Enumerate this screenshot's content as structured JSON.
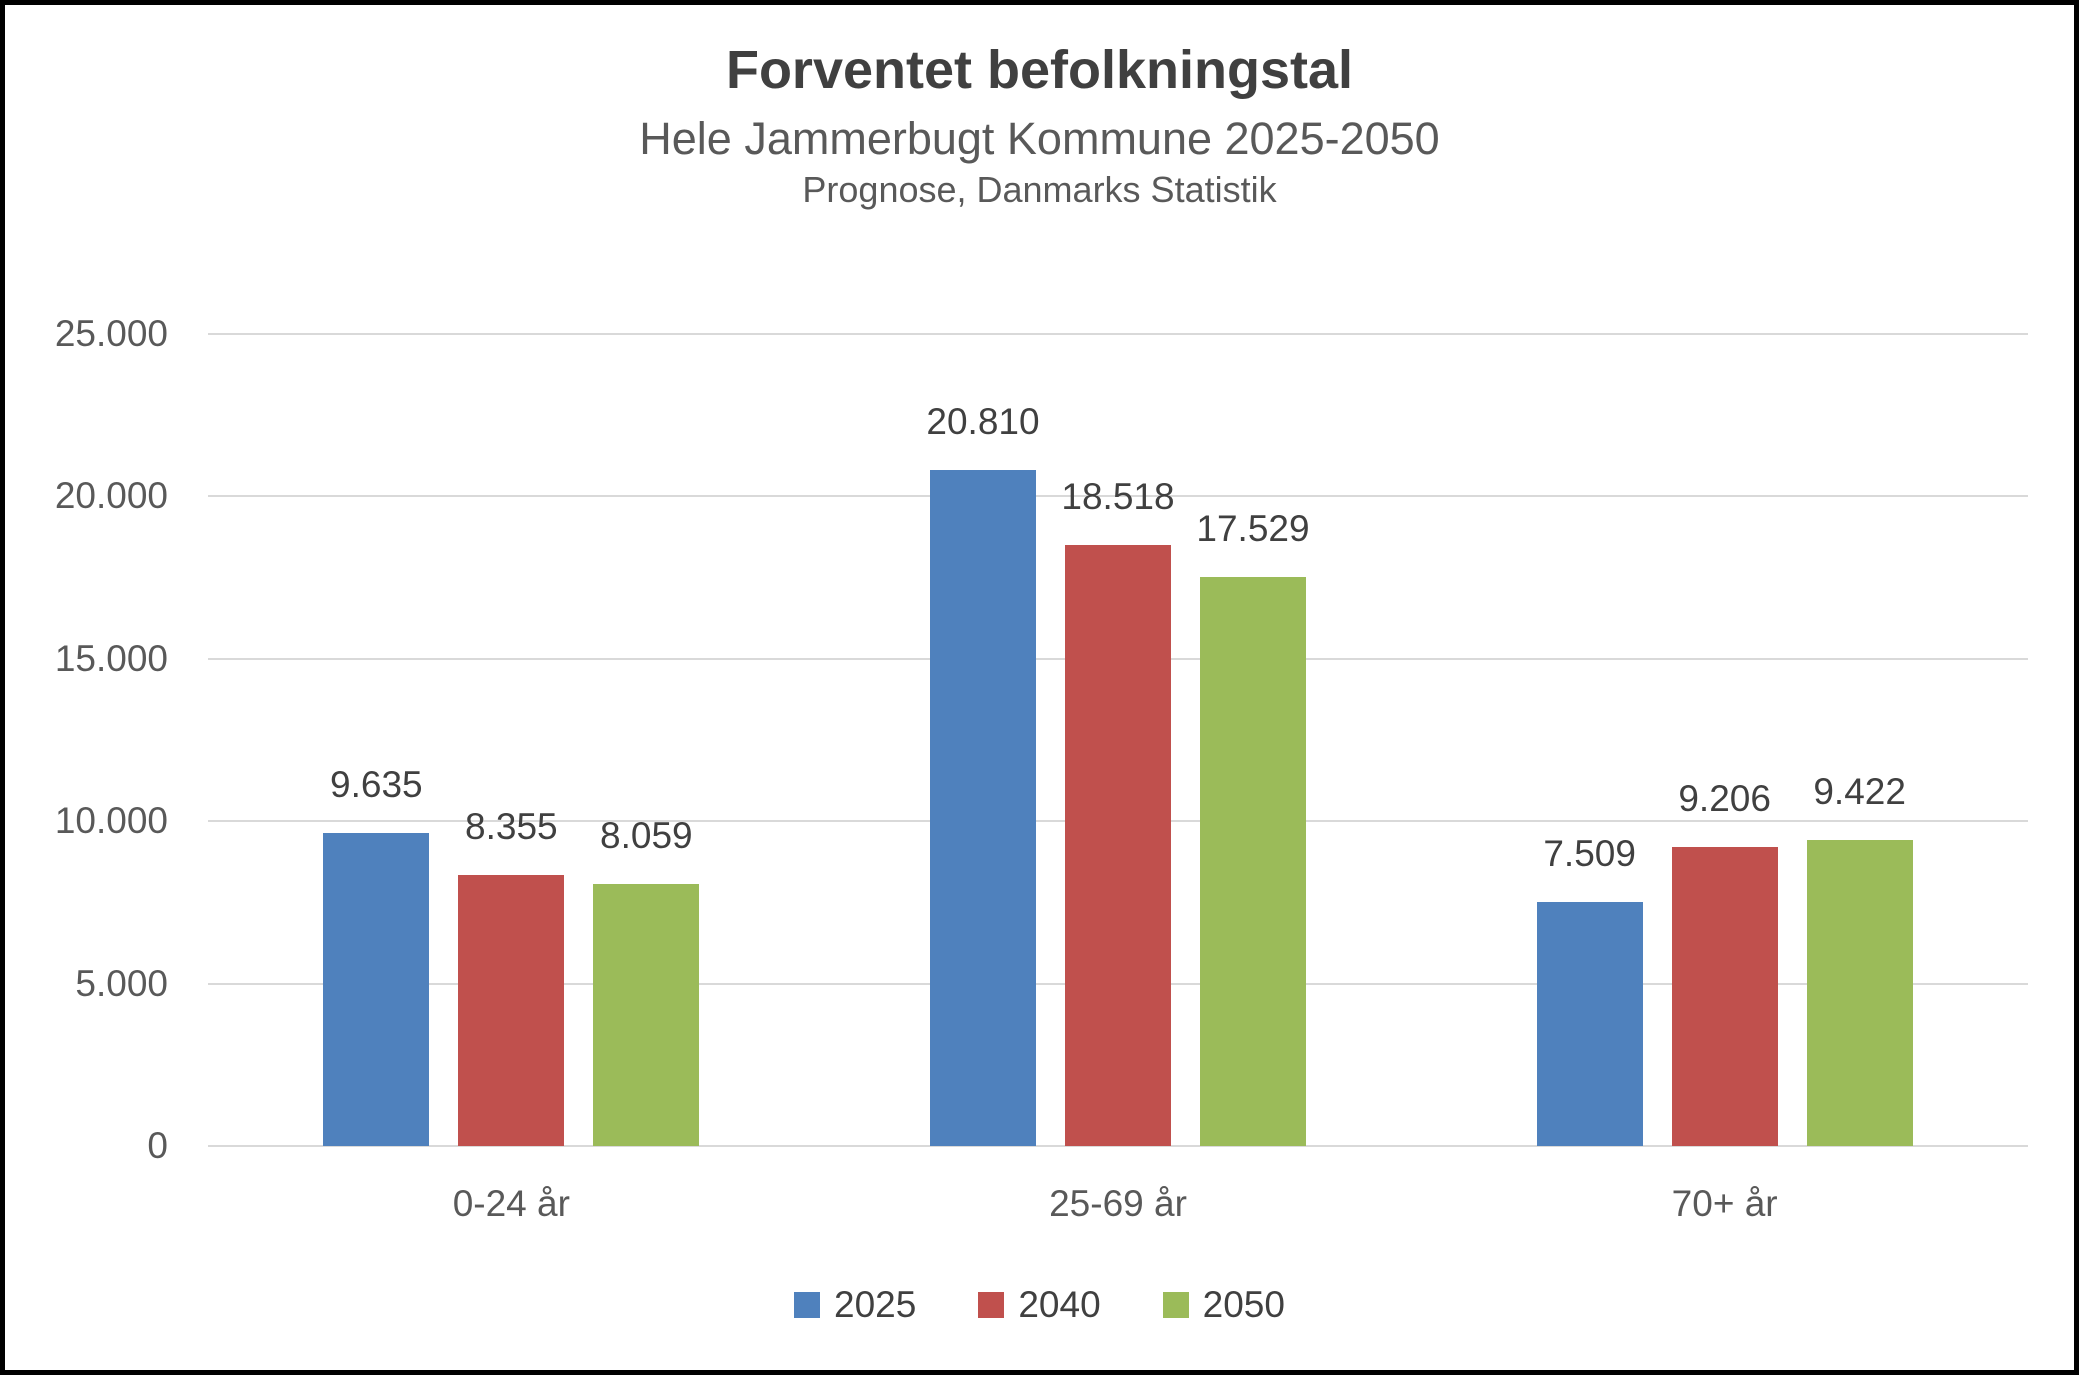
{
  "chart_data": {
    "type": "bar",
    "title": "Forventet befolkningstal",
    "subtitle": "Hele Jammerbugt Kommune 2025-2050",
    "note": "Prognose, Danmarks Statistik",
    "categories": [
      "0-24 år",
      "25-69 år",
      "70+ år"
    ],
    "series": [
      {
        "name": "2025",
        "color": "#4F81BD",
        "values": [
          9635,
          20810,
          7509
        ],
        "labels": [
          "9.635",
          "20.810",
          "7.509"
        ]
      },
      {
        "name": "2040",
        "color": "#C0504D",
        "values": [
          8355,
          18518,
          9206
        ],
        "labels": [
          "8.355",
          "18.518",
          "9.206"
        ]
      },
      {
        "name": "2050",
        "color": "#9BBB59",
        "values": [
          8059,
          17529,
          9422
        ],
        "labels": [
          "8.059",
          "17.529",
          "9.422"
        ]
      }
    ],
    "y_axis": {
      "min": 0,
      "max": 25000,
      "tick_interval": 5000,
      "tick_labels": [
        "0",
        "5.000",
        "10.000",
        "15.000",
        "20.000",
        "25.000"
      ]
    },
    "grid": true,
    "data_labels": true,
    "legend_position": "bottom"
  },
  "style": {
    "background": "#FFFFFF",
    "frame_border": "#000000",
    "gridline_color": "#D9D9D9",
    "title_color": "#404040",
    "axis_text_color": "#595959",
    "data_label_color": "#404040"
  }
}
